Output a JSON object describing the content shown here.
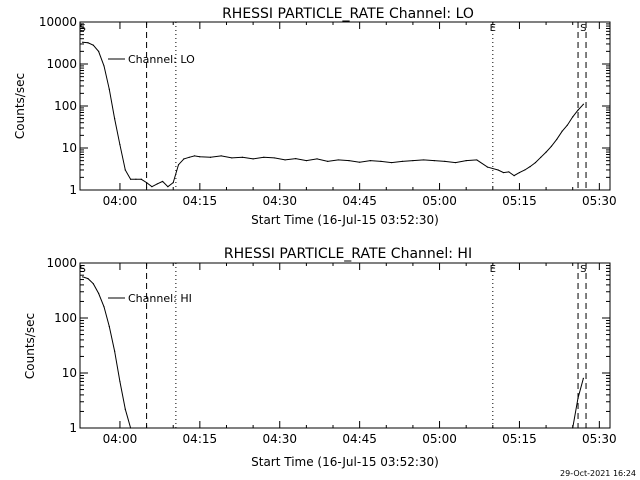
{
  "chart_data": [
    {
      "type": "line",
      "title": "RHESSI PARTICLE_RATE Channel: LO",
      "xlabel": "Start Time (16-Jul-15 03:52:30)",
      "ylabel": "Counts/sec",
      "yscale": "log",
      "ylim": [
        1,
        10000
      ],
      "ytick_labels": [
        "1",
        "10",
        "100",
        "1000",
        "10000"
      ],
      "xlim": [
        "03:52:30",
        "05:32:00"
      ],
      "xtick_labels": [
        "04:00",
        "04:15",
        "04:30",
        "04:45",
        "05:00",
        "05:15",
        "05:30"
      ],
      "series": [
        {
          "name": "Channel: LO",
          "x": [
            "03:53",
            "03:54",
            "03:55",
            "03:56",
            "03:57",
            "03:58",
            "03:59",
            "04:00",
            "04:01",
            "04:02",
            "04:03",
            "04:04",
            "04:05",
            "04:06",
            "04:07",
            "04:08",
            "04:09",
            "04:10",
            "04:11",
            "04:12",
            "04:13",
            "04:14",
            "04:15",
            "04:17",
            "04:19",
            "04:21",
            "04:23",
            "04:25",
            "04:27",
            "04:29",
            "04:31",
            "04:33",
            "04:35",
            "04:37",
            "04:39",
            "04:41",
            "04:43",
            "04:45",
            "04:47",
            "04:49",
            "04:51",
            "04:53",
            "04:55",
            "04:57",
            "04:59",
            "05:01",
            "05:03",
            "05:05",
            "05:07",
            "05:09",
            "05:11",
            "05:12",
            "05:13",
            "05:14",
            "05:15",
            "05:16",
            "05:17",
            "05:18",
            "05:19",
            "05:20",
            "05:21",
            "05:22",
            "05:23",
            "05:24",
            "05:25",
            "05:26",
            "05:27"
          ],
          "y": [
            3300,
            3200,
            2800,
            2000,
            900,
            250,
            50,
            12,
            3,
            1.8,
            1.8,
            1.8,
            1.5,
            1.2,
            1.4,
            1.6,
            1.2,
            1.5,
            4,
            5.5,
            6,
            6.5,
            6.2,
            6,
            6.5,
            5.8,
            6,
            5.5,
            6,
            5.8,
            5.2,
            5.6,
            5,
            5.5,
            4.8,
            5.2,
            5,
            4.6,
            5,
            4.8,
            4.5,
            4.8,
            5,
            5.2,
            5,
            4.8,
            4.5,
            5,
            5.2,
            3.5,
            3,
            2.6,
            2.7,
            2.2,
            2.6,
            3,
            3.6,
            4.5,
            6,
            8,
            11,
            16,
            25,
            35,
            55,
            80,
            110
          ]
        }
      ],
      "event_markers": [
        "S",
        "E",
        "S"
      ],
      "annotation": "Channel: LO"
    },
    {
      "type": "line",
      "title": "RHESSI PARTICLE_RATE Channel: HI",
      "xlabel": "Start Time (16-Jul-15 03:52:30)",
      "ylabel": "Counts/sec",
      "yscale": "log",
      "ylim": [
        1,
        1000
      ],
      "ytick_labels": [
        "1",
        "10",
        "100",
        "1000"
      ],
      "xlim": [
        "03:52:30",
        "05:32:00"
      ],
      "xtick_labels": [
        "04:00",
        "04:15",
        "04:30",
        "04:45",
        "05:00",
        "05:15",
        "05:30"
      ],
      "series": [
        {
          "name": "Channel: HI",
          "x": [
            "03:53",
            "03:54",
            "03:55",
            "03:56",
            "03:57",
            "03:58",
            "03:59",
            "04:00",
            "04:01",
            "04:02",
            "05:25",
            "05:26",
            "05:27"
          ],
          "y": [
            560,
            520,
            420,
            280,
            160,
            70,
            25,
            7,
            2.2,
            1,
            1,
            3.5,
            8
          ]
        }
      ],
      "event_markers": [
        "S",
        "E",
        "S"
      ],
      "annotation": "Channel: HI"
    }
  ],
  "footer_timestamp": "29-Oct-2021 16:24"
}
